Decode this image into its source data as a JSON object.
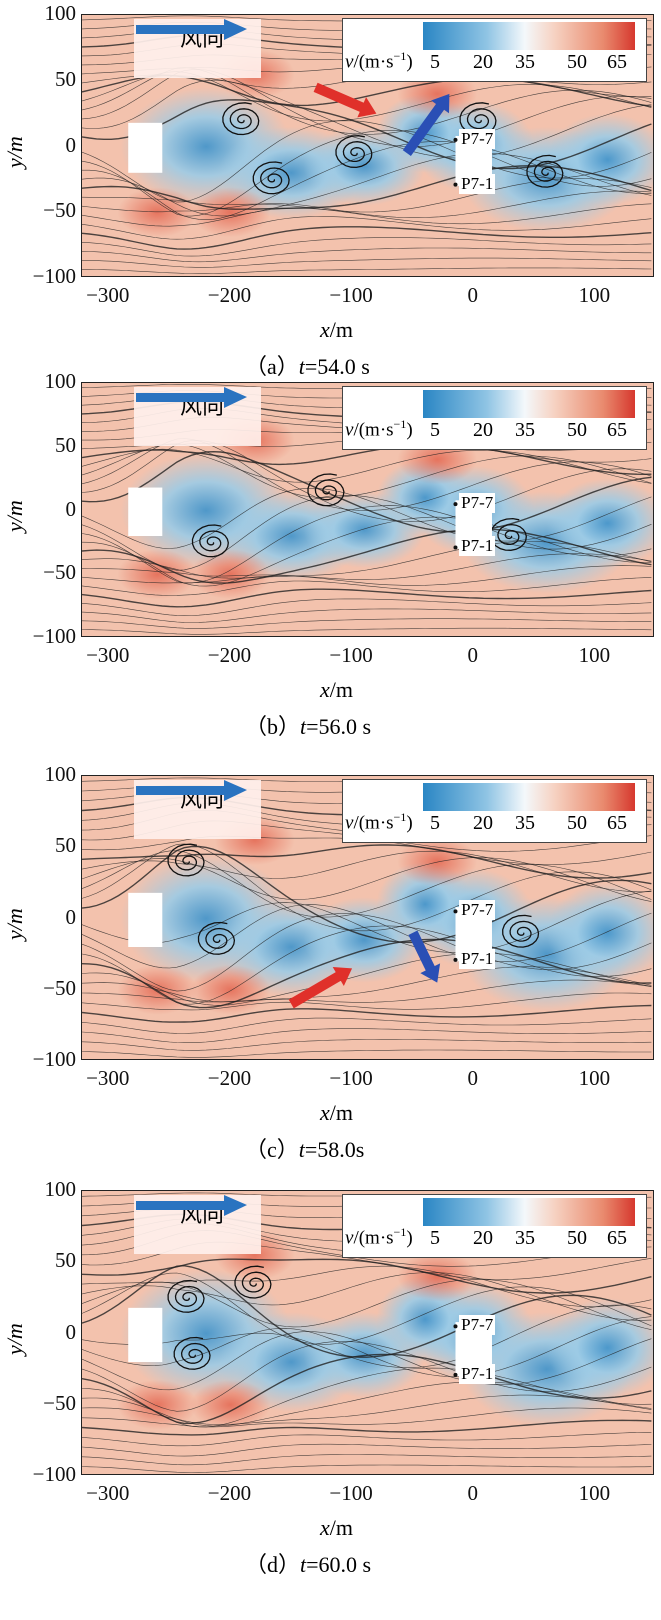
{
  "chart_data": {
    "type": "heatmap",
    "description_units": "velocity magnitude contour with streamlines",
    "xlabel_var": "x",
    "xlabel_unit": "/m",
    "ylabel_var": "y",
    "ylabel_unit": "/m",
    "xlim": [
      -322,
      149
    ],
    "ylim": [
      -100,
      100
    ],
    "xticks": [
      "−300",
      "−200",
      "−100",
      "0",
      "100"
    ],
    "xtick_values": [
      -300,
      -200,
      -100,
      0,
      100
    ],
    "yticks": [
      "100",
      "50",
      "0",
      "−50",
      "−100"
    ],
    "ytick_values": [
      100,
      50,
      0,
      -50,
      -100
    ],
    "colorbar": {
      "label_var": "v",
      "label_unit": "/(m·s",
      "label_exp": "−1",
      "label_close": ")",
      "ticks": [
        "5",
        "20",
        "35",
        "50",
        "65"
      ],
      "colors": [
        "#2a86c4",
        "#f4f8fb",
        "#d6382e"
      ]
    },
    "wind_label": "风向",
    "probe_labels": [
      "P7-7",
      "P7-1"
    ],
    "panels": [
      {
        "tag": "（a）",
        "t_var": "t",
        "t_value": "=54.0 s",
        "arrows": [
          "red",
          "blue"
        ]
      },
      {
        "tag": "（b）",
        "t_var": "t",
        "t_value": "=56.0 s",
        "arrows": []
      },
      {
        "tag": "（c）",
        "t_var": "t",
        "t_value": "=58.0s",
        "arrows": [
          "red",
          "blue"
        ]
      },
      {
        "tag": "（d）",
        "t_var": "t",
        "t_value": "=60.0 s",
        "arrows": []
      }
    ]
  }
}
